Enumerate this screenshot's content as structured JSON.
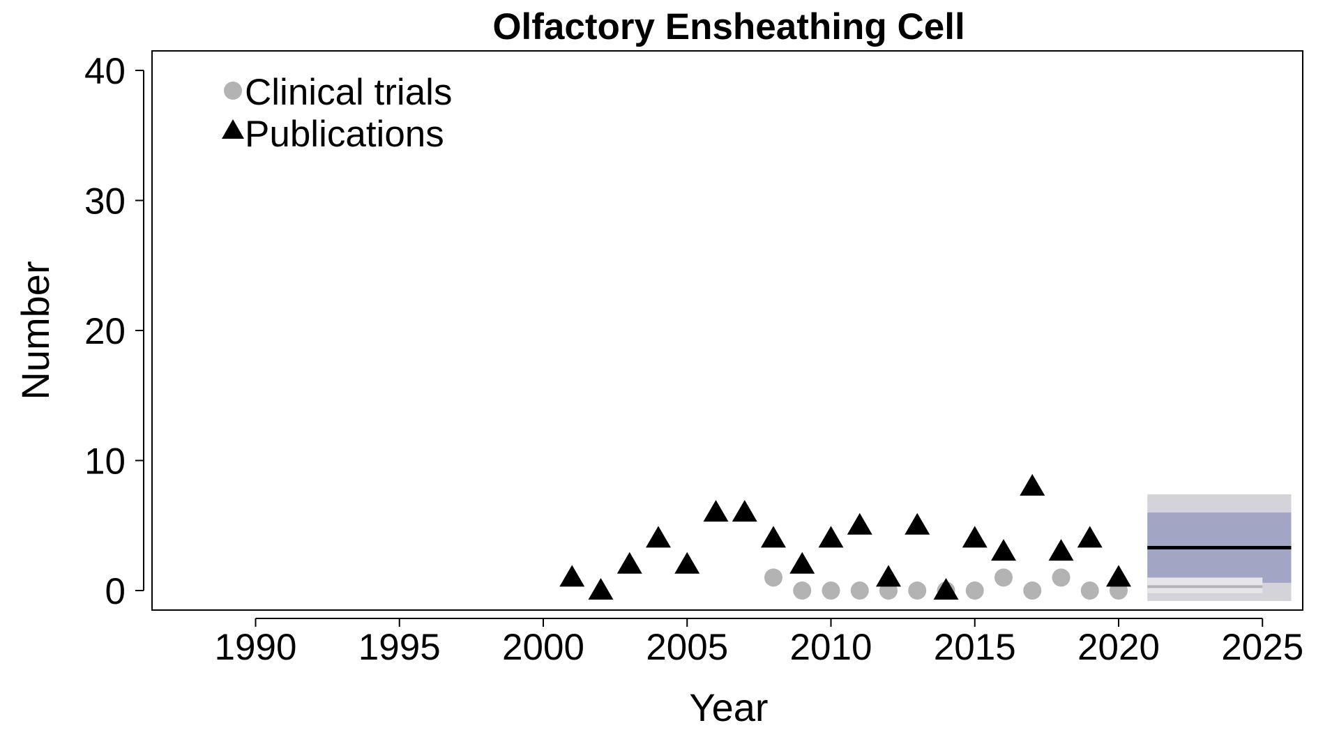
{
  "chart_data": {
    "type": "scatter",
    "title": "Olfactory Ensheathing Cell",
    "xlabel": "Year",
    "ylabel": "Number",
    "xlim": [
      1986.4,
      2026.4
    ],
    "ylim": [
      -1.5,
      41.5
    ],
    "x_ticks": [
      1990,
      1995,
      2000,
      2005,
      2010,
      2015,
      2020,
      2025
    ],
    "y_ticks": [
      0,
      10,
      20,
      30,
      40
    ],
    "legend_position": "top-left",
    "series": [
      {
        "name": "Clinical trials",
        "marker": "circle",
        "color": "#b3b3b3",
        "points": [
          [
            2008,
            1
          ],
          [
            2009,
            0
          ],
          [
            2010,
            0
          ],
          [
            2011,
            0
          ],
          [
            2012,
            0
          ],
          [
            2013,
            0
          ],
          [
            2014,
            0
          ],
          [
            2015,
            0
          ],
          [
            2016,
            1
          ],
          [
            2017,
            0
          ],
          [
            2018,
            1
          ],
          [
            2019,
            0
          ],
          [
            2020,
            0
          ]
        ]
      },
      {
        "name": "Publications",
        "marker": "triangle",
        "color": "#000000",
        "points": [
          [
            2001,
            1
          ],
          [
            2002,
            0
          ],
          [
            2003,
            2
          ],
          [
            2004,
            4
          ],
          [
            2005,
            2
          ],
          [
            2006,
            6
          ],
          [
            2007,
            6
          ],
          [
            2008,
            4
          ],
          [
            2009,
            2
          ],
          [
            2010,
            4
          ],
          [
            2011,
            5
          ],
          [
            2012,
            1
          ],
          [
            2013,
            5
          ],
          [
            2014,
            0
          ],
          [
            2015,
            4
          ],
          [
            2016,
            3
          ],
          [
            2017,
            8
          ],
          [
            2018,
            3
          ],
          [
            2019,
            4
          ],
          [
            2020,
            1
          ]
        ]
      }
    ],
    "forecast": {
      "x_range": [
        2021,
        2026
      ],
      "publications": {
        "mean": 3.3,
        "band_inner": [
          0.6,
          6.0
        ],
        "band_outer": [
          -0.8,
          7.4
        ],
        "line_color": "#000000",
        "inner_color": "#a2a5c4",
        "outer_color": "#d3d3d9"
      },
      "clinical_trials": {
        "x_range": [
          2021,
          2025
        ],
        "mean": 0.3,
        "band": [
          -0.2,
          1.0
        ],
        "line_color": "#b3b3b3",
        "band_color": "#e6e6ea"
      }
    }
  }
}
